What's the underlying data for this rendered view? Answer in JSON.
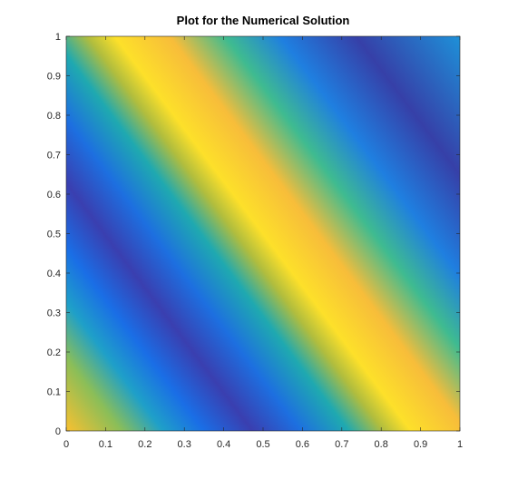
{
  "chart_data": {
    "type": "contour",
    "title": "Plot for the Numerical Solution",
    "xlim": [
      0,
      1
    ],
    "ylim": [
      0,
      1
    ],
    "xticks": [
      0,
      0.1,
      0.2,
      0.3,
      0.4,
      0.5,
      0.6,
      0.7,
      0.8,
      0.9,
      1
    ],
    "yticks": [
      0,
      0.1,
      0.2,
      0.3,
      0.4,
      0.5,
      0.6,
      0.7,
      0.8,
      0.9,
      1
    ]
  }
}
